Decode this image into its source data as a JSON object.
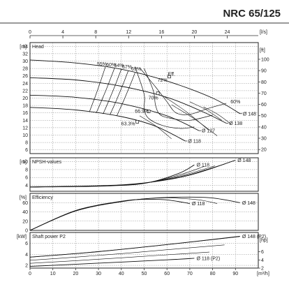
{
  "title": "NRC 65/125",
  "chart_data": {
    "type": "line",
    "top_axis": {
      "unit": "[l/s]",
      "min": 0,
      "max": 28,
      "ticks": [
        0,
        4,
        8,
        12,
        16,
        20,
        24
      ]
    },
    "bottom_axis": {
      "unit": "[m³/h]",
      "min": 0,
      "max": 100,
      "ticks": [
        0,
        10,
        20,
        30,
        40,
        50,
        60,
        70,
        80,
        90
      ]
    },
    "panels": [
      {
        "id": "head",
        "label": "Head",
        "left_unit": "[m]",
        "right_unit": "[ft]",
        "left_range": [
          5,
          35
        ],
        "left_ticks": [
          6,
          8,
          10,
          12,
          14,
          16,
          18,
          20,
          22,
          24,
          26,
          28,
          30,
          32,
          34
        ],
        "right_ticks": [
          20,
          30,
          40,
          50,
          60,
          70,
          80,
          90,
          100
        ],
        "curves": [
          {
            "label": "Ø 148",
            "points": [
              [
                0,
                30.3
              ],
              [
                20,
                29.5
              ],
              [
                40,
                27.8
              ],
              [
                60,
                24.6
              ],
              [
                80,
                20.0
              ],
              [
                92,
                15.8
              ]
            ]
          },
          {
            "label": "Ø 138",
            "points": [
              [
                0,
                25.5
              ],
              [
                20,
                24.9
              ],
              [
                40,
                23.2
              ],
              [
                60,
                20.2
              ],
              [
                75,
                16.5
              ],
              [
                86,
                13.2
              ]
            ]
          },
          {
            "label": "Ø 127",
            "points": [
              [
                0,
                20.8
              ],
              [
                20,
                20.2
              ],
              [
                40,
                18.5
              ],
              [
                60,
                15.2
              ],
              [
                74,
                11.2
              ]
            ]
          },
          {
            "label": "Ø 118",
            "points": [
              [
                0,
                17.5
              ],
              [
                20,
                16.8
              ],
              [
                40,
                15.0
              ],
              [
                55,
                12.4
              ],
              [
                68,
                8.4
              ]
            ]
          }
        ],
        "efficiency_labels": [
          "55%",
          "60%",
          "64%",
          "67%",
          "69%",
          "70%",
          "72%",
          "Eff.",
          "60%",
          "66.9%",
          "63.3%"
        ]
      },
      {
        "id": "npsh",
        "label": "NPSH-values",
        "left_unit": "[m]",
        "left_range": [
          2.5,
          11
        ],
        "left_ticks": [
          4,
          6,
          8,
          10
        ],
        "curves": [
          {
            "label": "Ø 148",
            "points": [
              [
                0,
                3.6
              ],
              [
                30,
                3.9
              ],
              [
                50,
                4.6
              ],
              [
                70,
                6.6
              ],
              [
                90,
                10.4
              ]
            ]
          },
          {
            "label": "Ø 118",
            "points": [
              [
                0,
                3.6
              ],
              [
                30,
                3.8
              ],
              [
                50,
                4.5
              ],
              [
                65,
                7.0
              ],
              [
                72,
                9.2
              ]
            ]
          }
        ]
      },
      {
        "id": "efficiency",
        "label": "Efficiency",
        "left_unit": "[%]",
        "left_range": [
          0,
          80
        ],
        "left_ticks": [
          0,
          20,
          40,
          60
        ],
        "curves": [
          {
            "label": "Ø 148",
            "points": [
              [
                0,
                0
              ],
              [
                20,
                42
              ],
              [
                40,
                62
              ],
              [
                55,
                70
              ],
              [
                70,
                72
              ],
              [
                80,
                70
              ],
              [
                92,
                60
              ]
            ]
          },
          {
            "label": "Ø 118",
            "points": [
              [
                0,
                0
              ],
              [
                20,
                43
              ],
              [
                40,
                63
              ],
              [
                50,
                67
              ],
              [
                60,
                66
              ],
              [
                70,
                58
              ]
            ]
          }
        ]
      },
      {
        "id": "power",
        "label": "Shaft power P2",
        "left_unit": "[kW]",
        "right_unit": "[hp]",
        "left_range": [
          1.5,
          8
        ],
        "left_ticks": [
          2,
          4,
          6
        ],
        "right_ticks": [
          2,
          4,
          6,
          8
        ],
        "curves": [
          {
            "label": "Ø 148 (P2)",
            "points": [
              [
                0,
                3.5
              ],
              [
                30,
                4.5
              ],
              [
                60,
                5.8
              ],
              [
                92,
                7.3
              ]
            ]
          },
          {
            "label": "Ø 118 (P2)",
            "points": [
              [
                0,
                1.8
              ],
              [
                30,
                2.4
              ],
              [
                60,
                3.0
              ],
              [
                72,
                3.3
              ]
            ]
          }
        ]
      }
    ]
  }
}
